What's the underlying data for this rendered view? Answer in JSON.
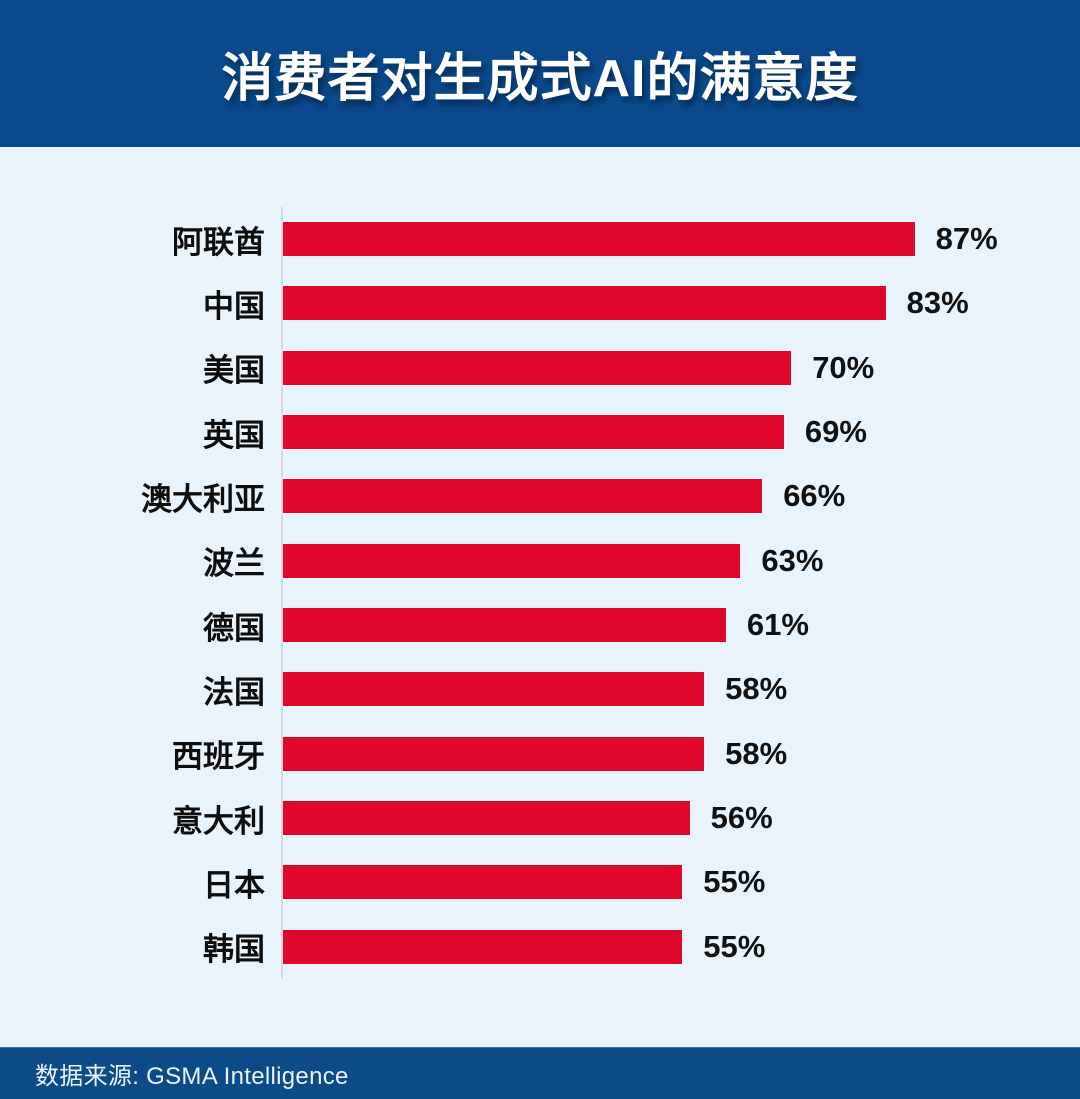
{
  "header": {
    "title": "消费者对生成式AI的满意度"
  },
  "footer": {
    "source": "数据来源: GSMA Intelligence"
  },
  "chart_data": {
    "type": "bar",
    "orientation": "horizontal",
    "title": "消费者对生成式AI的满意度",
    "categories": [
      "阿联酋",
      "中国",
      "美国",
      "英国",
      "澳大利亚",
      "波兰",
      "德国",
      "法国",
      "西班牙",
      "意大利",
      "日本",
      "韩国"
    ],
    "values": [
      87,
      83,
      70,
      69,
      66,
      63,
      61,
      58,
      58,
      56,
      55,
      55
    ],
    "value_labels": [
      "87%",
      "83%",
      "70%",
      "69%",
      "66%",
      "63%",
      "61%",
      "58%",
      "58%",
      "56%",
      "55%",
      "55%"
    ],
    "value_suffix": "%",
    "xlim": [
      0,
      100
    ],
    "grid": false,
    "legend": "none",
    "source": "GSMA Intelligence"
  },
  "colors": {
    "header_bg": "#0a4a8c",
    "footer_bg": "#0b4b87",
    "chart_bg": "#e9f3fb",
    "bar": "#e0072c",
    "axis_line": "#d5dae0",
    "label_text": "#0d0d0d",
    "title_text": "#ffffff"
  }
}
